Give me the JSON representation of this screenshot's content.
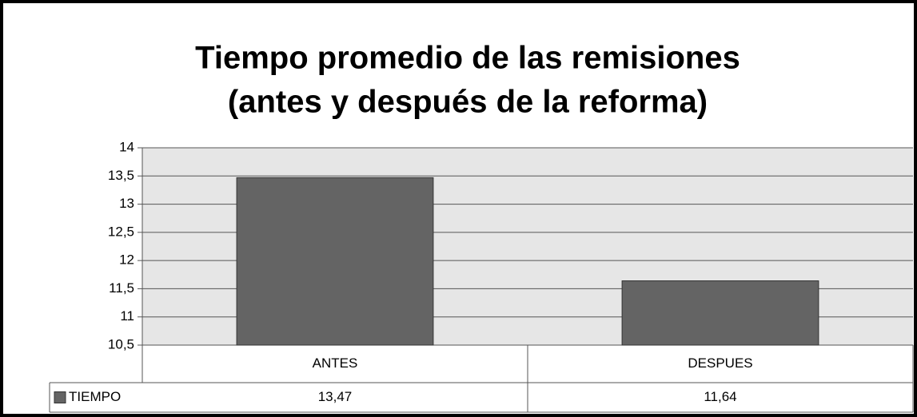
{
  "chart_data": {
    "type": "bar",
    "title": [
      "Tiempo promedio de las remisiones",
      "(antes y después de la reforma)"
    ],
    "categories": [
      "ANTES",
      "DESPUES"
    ],
    "series": [
      {
        "name": "TIEMPO",
        "color": "#646464",
        "values": [
          13.47,
          11.64
        ],
        "value_labels": [
          "13,47",
          "11,64"
        ]
      }
    ],
    "ylim": [
      10.5,
      14
    ],
    "yticks": [
      {
        "value": 10.5,
        "label": "10,5"
      },
      11,
      {
        "value": 11.5,
        "label": "11,5"
      },
      12,
      {
        "value": 12.5,
        "label": "12,5"
      },
      13,
      {
        "value": 13.5,
        "label": "13,5"
      },
      14
    ],
    "grid": true,
    "legend": "data-table"
  }
}
